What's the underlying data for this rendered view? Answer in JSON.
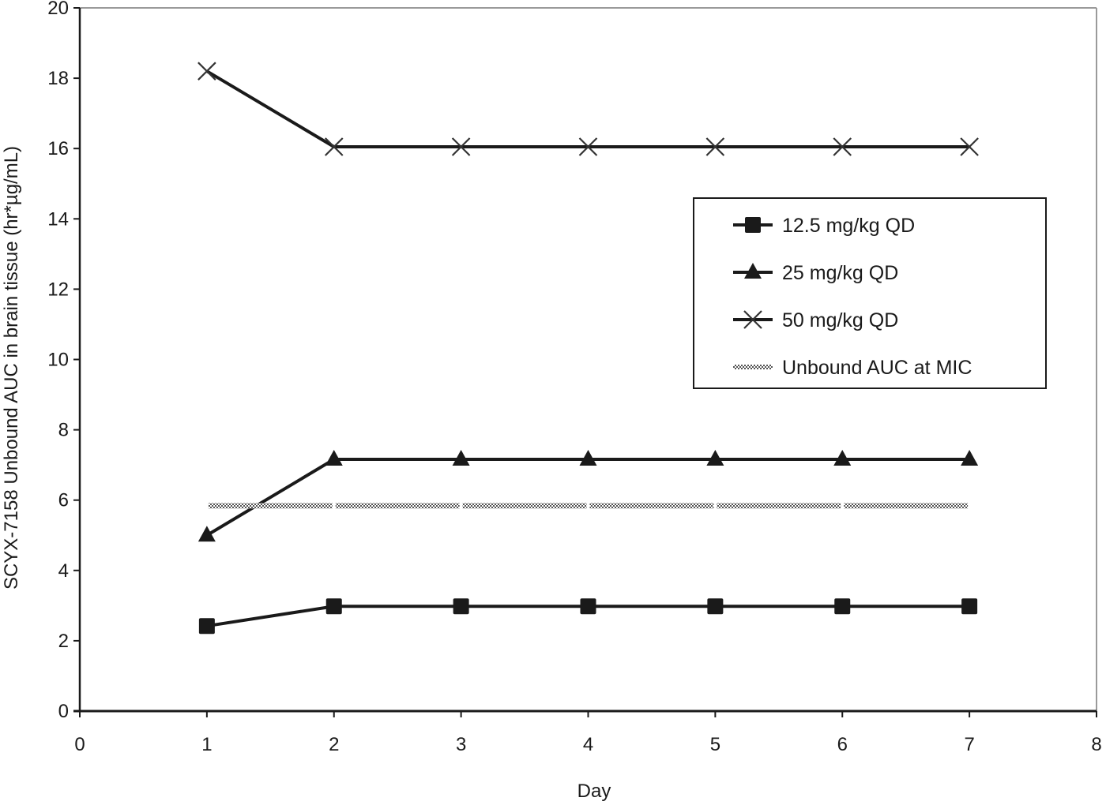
{
  "chart_data": {
    "type": "line",
    "title": "",
    "xlabel": "Day",
    "ylabel": "SCYX-7158 Unbound AUC in brain tissue (hr*µg/mL)",
    "xlim": [
      0,
      8
    ],
    "ylim": [
      0,
      20
    ],
    "xticks": [
      "0",
      "1",
      "2",
      "3",
      "4",
      "5",
      "6",
      "7",
      "8"
    ],
    "yticks": [
      "0",
      "2",
      "4",
      "6",
      "8",
      "10",
      "12",
      "14",
      "16",
      "18",
      "20"
    ],
    "grid": false,
    "legend_position": "upper right (inside plot)",
    "x": [
      1,
      2,
      3,
      4,
      5,
      6,
      7
    ],
    "series": [
      {
        "name": "12.5 mg/kg QD",
        "marker": "square",
        "values": [
          2.42,
          2.98,
          2.98,
          2.98,
          2.98,
          2.98,
          2.98
        ]
      },
      {
        "name": "25 mg/kg QD",
        "marker": "triangle",
        "values": [
          5.0,
          7.16,
          7.16,
          7.16,
          7.16,
          7.16,
          7.16
        ]
      },
      {
        "name": "50 mg/kg QD",
        "marker": "x",
        "values": [
          18.2,
          16.05,
          16.05,
          16.05,
          16.05,
          16.05,
          16.05
        ]
      },
      {
        "name": "Unbound AUC at MIC",
        "marker": "none",
        "style": "hatched gray",
        "values": [
          5.84,
          5.84,
          5.84,
          5.84,
          5.84,
          5.84,
          5.84
        ]
      }
    ]
  },
  "colors": {
    "series_line": "#1a1a1a",
    "mic_line": "#8a8a8a",
    "frame": "#9a9a9a",
    "axis": "#1a1a1a"
  }
}
